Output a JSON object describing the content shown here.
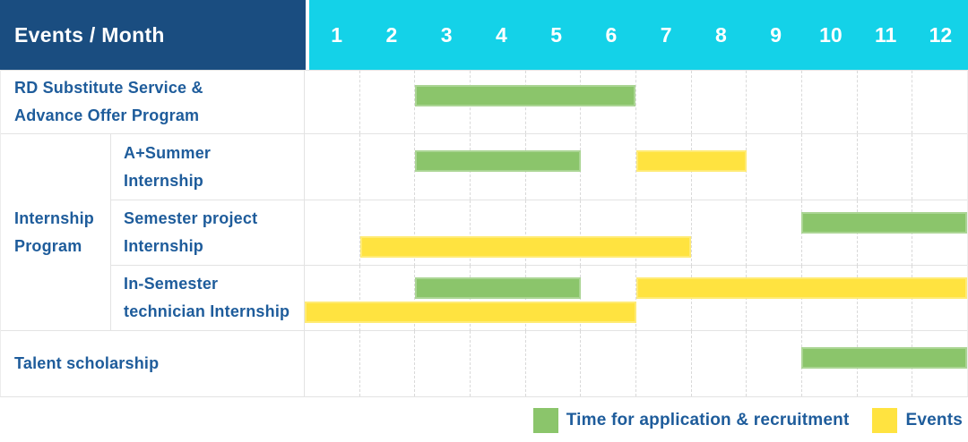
{
  "header": {
    "title": "Events / Month",
    "months": [
      "1",
      "2",
      "3",
      "4",
      "5",
      "6",
      "7",
      "8",
      "9",
      "10",
      "11",
      "12"
    ]
  },
  "colors": {
    "navy": "#1a4d80",
    "cyan": "#14d2e8",
    "green": "#8bc56b",
    "yellow": "#ffe340",
    "label_text": "#1e5c9b",
    "grid": "#e3e3e3"
  },
  "chart_data": {
    "type": "gantt",
    "x_unit": "month",
    "x_range": [
      1,
      12
    ],
    "group_label": "Internship\nProgram",
    "rows": [
      {
        "label": "RD Substitute Service &\nAdvance Offer Program",
        "lanes": 1,
        "bars": [
          {
            "kind": "application-recruitment",
            "color": "green",
            "start": 3,
            "end": 7,
            "months_covered": "3-6",
            "lane": 0
          }
        ]
      },
      {
        "label": "A+Summer\nInternship",
        "group": "Internship Program",
        "lanes": 1,
        "bars": [
          {
            "kind": "application-recruitment",
            "color": "green",
            "start": 3,
            "end": 6,
            "months_covered": "3-5",
            "lane": 0
          },
          {
            "kind": "event",
            "color": "yellow",
            "start": 7,
            "end": 9,
            "months_covered": "7-8",
            "lane": 0
          }
        ]
      },
      {
        "label": "Semester project\nInternship",
        "group": "Internship Program",
        "lanes": 2,
        "bars": [
          {
            "kind": "application-recruitment",
            "color": "green",
            "start": 10,
            "end": 13,
            "months_covered": "10-12",
            "lane": 0
          },
          {
            "kind": "event",
            "color": "yellow",
            "start": 2,
            "end": 8,
            "months_covered": "2-7",
            "lane": 1
          }
        ]
      },
      {
        "label": "In-Semester\ntechnician Internship",
        "group": "Internship Program",
        "lanes": 2,
        "bars": [
          {
            "kind": "application-recruitment",
            "color": "green",
            "start": 3,
            "end": 6,
            "months_covered": "3-5",
            "lane": 0
          },
          {
            "kind": "event",
            "color": "yellow",
            "start": 7,
            "end": 13,
            "months_covered": "7-12",
            "lane": 0
          },
          {
            "kind": "event",
            "color": "yellow",
            "start": 1,
            "end": 7,
            "months_covered": "1-6",
            "lane": 1
          }
        ]
      },
      {
        "label": "Talent scholarship",
        "lanes": 1,
        "bars": [
          {
            "kind": "application-recruitment",
            "color": "green",
            "start": 10,
            "end": 13,
            "months_covered": "10-12",
            "lane": 0
          }
        ]
      }
    ],
    "legend": [
      {
        "label": "Time for application & recruitment",
        "color_key": "green"
      },
      {
        "label": "Events",
        "color_key": "yellow"
      }
    ]
  }
}
